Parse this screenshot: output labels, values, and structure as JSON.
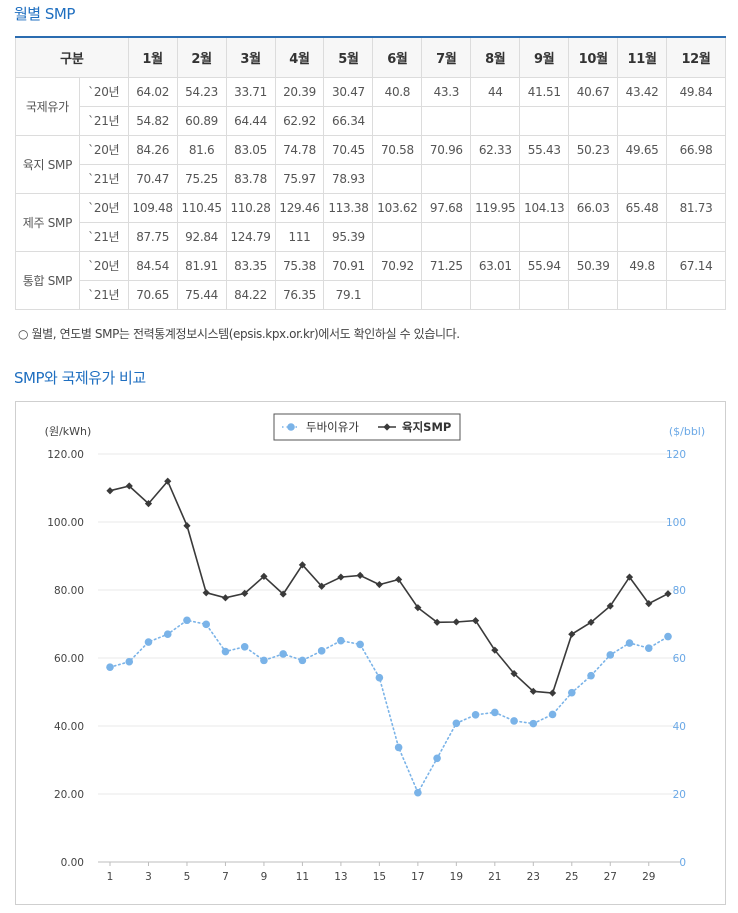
{
  "section1": {
    "title": "월별 SMP"
  },
  "table": {
    "headers": [
      "구분",
      "1월",
      "2월",
      "3월",
      "4월",
      "5월",
      "6월",
      "7월",
      "8월",
      "9월",
      "10월",
      "11월",
      "12월"
    ],
    "groups": [
      {
        "name": "국제유가",
        "rows": [
          {
            "year": "`20년",
            "values": [
              "64.02",
              "54.23",
              "33.71",
              "20.39",
              "30.47",
              "40.8",
              "43.3",
              "44",
              "41.51",
              "40.67",
              "43.42",
              "49.84"
            ]
          },
          {
            "year": "`21년",
            "values": [
              "54.82",
              "60.89",
              "64.44",
              "62.92",
              "66.34",
              "",
              "",
              "",
              "",
              "",
              "",
              ""
            ]
          }
        ]
      },
      {
        "name": "육지 SMP",
        "rows": [
          {
            "year": "`20년",
            "values": [
              "84.26",
              "81.6",
              "83.05",
              "74.78",
              "70.45",
              "70.58",
              "70.96",
              "62.33",
              "55.43",
              "50.23",
              "49.65",
              "66.98"
            ]
          },
          {
            "year": "`21년",
            "values": [
              "70.47",
              "75.25",
              "83.78",
              "75.97",
              "78.93",
              "",
              "",
              "",
              "",
              "",
              "",
              ""
            ]
          }
        ]
      },
      {
        "name": "제주 SMP",
        "rows": [
          {
            "year": "`20년",
            "values": [
              "109.48",
              "110.45",
              "110.28",
              "129.46",
              "113.38",
              "103.62",
              "97.68",
              "119.95",
              "104.13",
              "66.03",
              "65.48",
              "81.73"
            ]
          },
          {
            "year": "`21년",
            "values": [
              "87.75",
              "92.84",
              "124.79",
              "111",
              "95.39",
              "",
              "",
              "",
              "",
              "",
              "",
              ""
            ]
          }
        ]
      },
      {
        "name": "통합 SMP",
        "rows": [
          {
            "year": "`20년",
            "values": [
              "84.54",
              "81.91",
              "83.35",
              "75.38",
              "70.91",
              "70.92",
              "71.25",
              "63.01",
              "55.94",
              "50.39",
              "49.8",
              "67.14"
            ]
          },
          {
            "year": "`21년",
            "values": [
              "70.65",
              "75.44",
              "84.22",
              "76.35",
              "79.1",
              "",
              "",
              "",
              "",
              "",
              "",
              ""
            ]
          }
        ]
      }
    ]
  },
  "note": "○ 월별, 연도별 SMP는 전력통계정보시스템(epsis.kpx.or.kr)에서도 확인하실 수 있습니다.",
  "section2": {
    "title": "SMP와 국제유가 비교"
  },
  "chart_data": {
    "type": "line",
    "title": "",
    "ylabel_left": "(원/kWh)",
    "ylabel_right": "($/bbl)",
    "x": [
      1,
      2,
      3,
      4,
      5,
      6,
      7,
      8,
      9,
      10,
      11,
      12,
      13,
      14,
      15,
      16,
      17,
      18,
      19,
      20,
      21,
      22,
      23,
      24,
      25,
      26,
      27,
      28,
      29,
      30
    ],
    "x_ticks": [
      1,
      3,
      5,
      7,
      9,
      11,
      13,
      15,
      17,
      19,
      21,
      23,
      25,
      27,
      29
    ],
    "y_left_ticks": [
      "0.00",
      "20.00",
      "40.00",
      "60.00",
      "80.00",
      "100.00",
      "120.00"
    ],
    "y_right_ticks": [
      "0",
      "20",
      "40",
      "60",
      "80",
      "100",
      "120"
    ],
    "ylim": [
      0,
      120
    ],
    "legend_position": "top-center",
    "series": [
      {
        "name": "두바이유가",
        "axis": "right",
        "color": "#7ab3e8",
        "style": "dotted-circle",
        "values": [
          57.3,
          58.9,
          64.7,
          67.0,
          71.1,
          69.9,
          61.9,
          63.3,
          59.3,
          61.2,
          59.3,
          62.1,
          65.1,
          64.0,
          54.2,
          33.7,
          20.4,
          30.5,
          40.8,
          43.3,
          44.0,
          41.5,
          40.7,
          43.4,
          49.8,
          54.8,
          60.9,
          64.4,
          62.9,
          66.3
        ]
      },
      {
        "name": "육지SMP",
        "axis": "left",
        "color": "#3a3a3a",
        "style": "solid-diamond",
        "values": [
          109.2,
          110.6,
          105.4,
          112.0,
          98.9,
          79.2,
          77.7,
          79.0,
          84.0,
          78.8,
          87.4,
          81.1,
          83.8,
          84.3,
          81.6,
          83.1,
          74.8,
          70.5,
          70.6,
          71.0,
          62.3,
          55.4,
          50.2,
          49.7,
          67.0,
          70.5,
          75.3,
          83.8,
          76.0,
          78.9
        ]
      }
    ]
  }
}
